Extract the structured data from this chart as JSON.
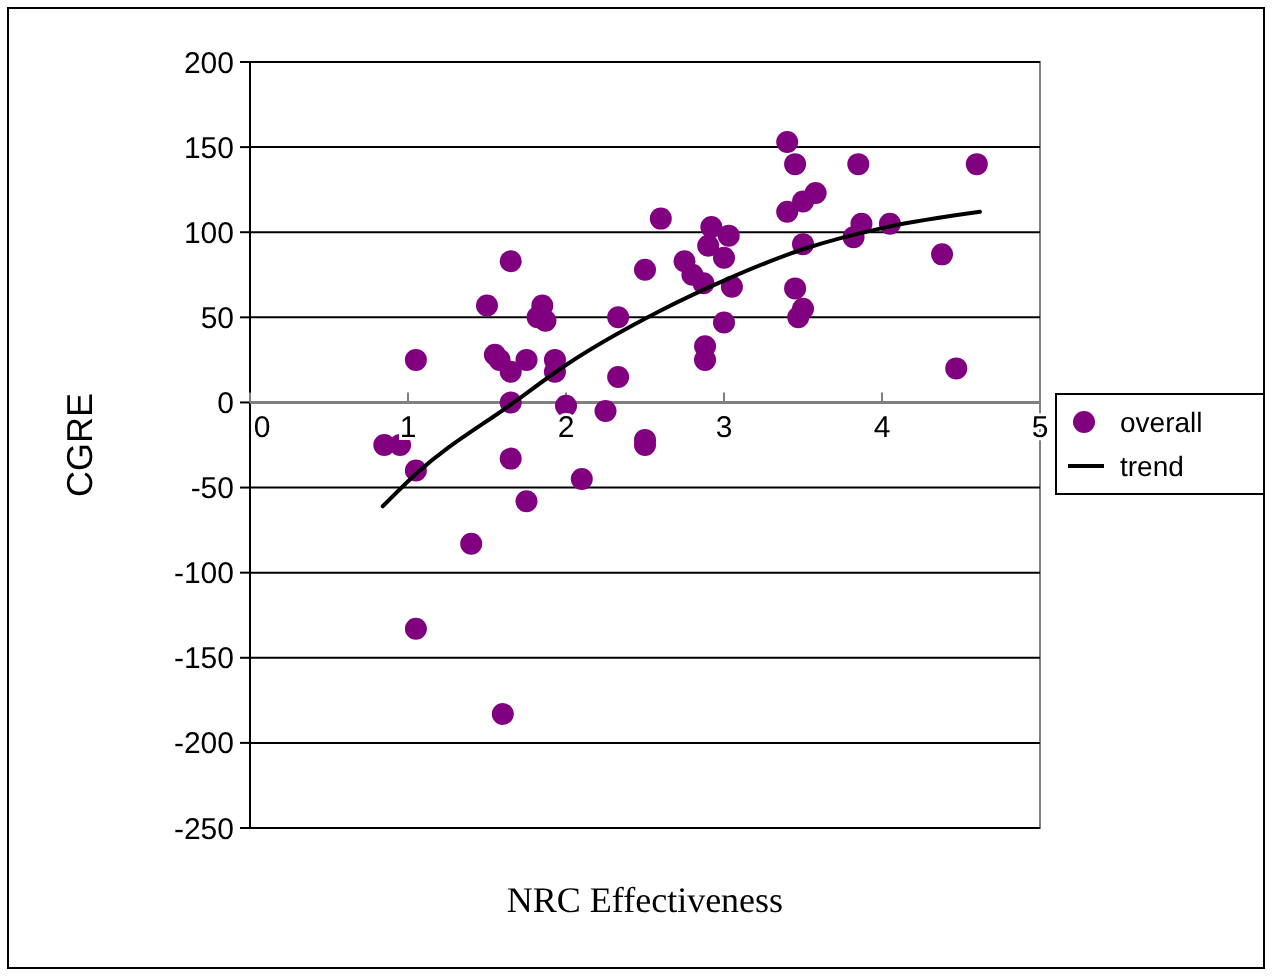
{
  "chart_data": {
    "type": "scatter",
    "xlabel": "NRC Effectiveness",
    "ylabel": "CGRE",
    "xlim": [
      0,
      5
    ],
    "xticks": [
      0,
      1,
      2,
      3,
      4,
      5
    ],
    "ylim": [
      -250,
      200
    ],
    "yticks": [
      -250,
      -200,
      -150,
      -100,
      -50,
      0,
      50,
      100,
      150,
      200
    ],
    "grid": "y",
    "legend": "right",
    "series": [
      {
        "name": "overall",
        "marker": "circle",
        "color": "#800080",
        "x": [
          0.85,
          0.95,
          1.05,
          1.05,
          1.05,
          1.4,
          1.5,
          1.55,
          1.58,
          1.6,
          1.65,
          1.65,
          1.65,
          1.65,
          1.75,
          1.75,
          1.82,
          1.85,
          1.87,
          1.93,
          1.93,
          2.0,
          2.1,
          2.25,
          2.33,
          2.33,
          2.5,
          2.5,
          2.5,
          2.6,
          2.75,
          2.8,
          2.87,
          2.88,
          2.88,
          2.9,
          2.92,
          3.0,
          3.0,
          3.03,
          3.05,
          3.4,
          3.4,
          3.45,
          3.45,
          3.47,
          3.5,
          3.5,
          3.5,
          3.58,
          3.82,
          3.85,
          3.87,
          4.05,
          4.38,
          4.47,
          4.6
        ],
        "values": [
          -25,
          -25,
          25,
          -40,
          -133,
          -83,
          57,
          28,
          25,
          -183,
          83,
          18,
          0,
          -33,
          25,
          -58,
          50,
          57,
          48,
          25,
          18,
          -2,
          -45,
          -5,
          50,
          15,
          78,
          -22,
          -25,
          108,
          83,
          75,
          70,
          33,
          25,
          92,
          103,
          85,
          47,
          98,
          68,
          153,
          112,
          140,
          67,
          50,
          118,
          93,
          55,
          123,
          97,
          140,
          105,
          105,
          87,
          20,
          140
        ]
      },
      {
        "name": "trend",
        "type": "line",
        "color": "#000000",
        "line_style": "solid",
        "marker": "none",
        "x": [
          0.84,
          1.05,
          1.67,
          2,
          2.6,
          3.01,
          3.5,
          4.03,
          4.62
        ],
        "values": [
          -61,
          -42,
          0,
          22,
          54,
          72,
          90,
          103,
          112
        ]
      }
    ]
  }
}
